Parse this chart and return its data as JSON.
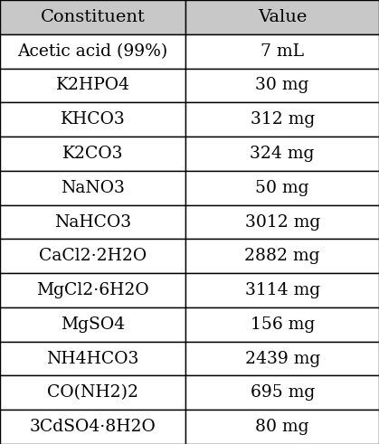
{
  "header": [
    "Constituent",
    "Value"
  ],
  "rows": [
    [
      "Acetic acid (99%)",
      "7 mL"
    ],
    [
      "K2HPO4",
      "30 mg"
    ],
    [
      "KHCO3",
      "312 mg"
    ],
    [
      "K2CO3",
      "324 mg"
    ],
    [
      "NaNO3",
      "50 mg"
    ],
    [
      "NaHCO3",
      "3012 mg"
    ],
    [
      "CaCl2·2H2O",
      "2882 mg"
    ],
    [
      "MgCl2·6H2O",
      "3114 mg"
    ],
    [
      "MgSO4",
      "156 mg"
    ],
    [
      "NH4HCO3",
      "2439 mg"
    ],
    [
      "CO(NH2)2",
      "695 mg"
    ],
    [
      "3CdSO4·8H2O",
      "80 mg"
    ]
  ],
  "header_bg": "#c8c8c8",
  "header_fontsize": 14,
  "row_fontsize": 13.5,
  "col_split": 0.49,
  "fig_width": 4.19,
  "fig_height": 4.91,
  "dpi": 100,
  "font_family": "DejaVu Serif"
}
